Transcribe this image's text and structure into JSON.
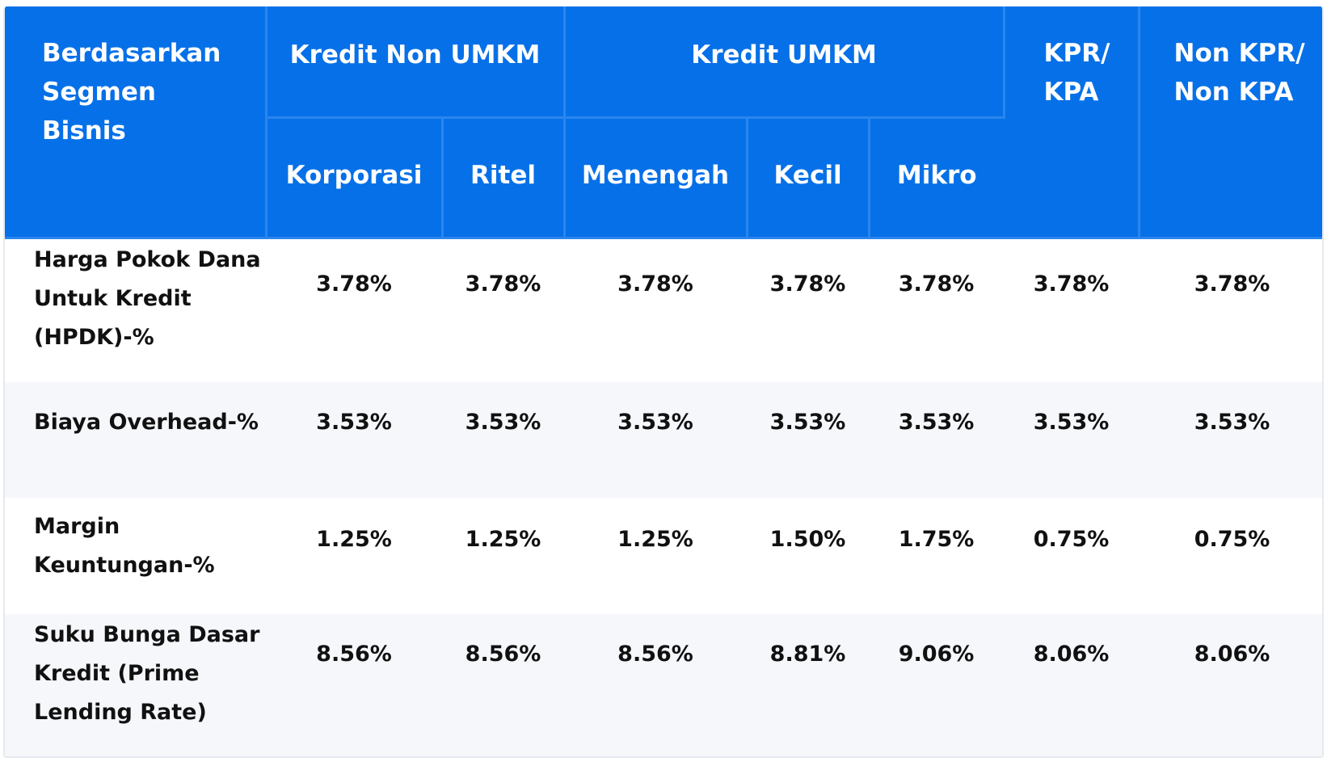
{
  "table": {
    "header": {
      "segmen": "Berdasarkan Segmen Bisnis",
      "group_non_umkm": "Kredit Non UMKM",
      "group_umkm": "Kredit UMKM",
      "kpr": "KPR/ KPA",
      "non_kpr": "Non KPR/ Non KPA",
      "korporasi": "Korporasi",
      "ritel": "Ritel",
      "menengah": "Menengah",
      "kecil": "Kecil",
      "mikro": "Mikro"
    },
    "rows": [
      {
        "label": "Harga Pokok Dana Untuk Kredit (HPDK)-%",
        "values": [
          "3.78%",
          "3.78%",
          "3.78%",
          "3.78%",
          "3.78%",
          "3.78%",
          "3.78%"
        ]
      },
      {
        "label": "Biaya Overhead-%",
        "values": [
          "3.53%",
          "3.53%",
          "3.53%",
          "3.53%",
          "3.53%",
          "3.53%",
          "3.53%"
        ]
      },
      {
        "label": "Margin Keuntungan-%",
        "values": [
          "1.25%",
          "1.25%",
          "1.25%",
          "1.50%",
          "1.75%",
          "0.75%",
          "0.75%"
        ]
      },
      {
        "label": "Suku Bunga Dasar Kredit (Prime Lending Rate)",
        "values": [
          "8.56%",
          "8.56%",
          "8.56%",
          "8.81%",
          "9.06%",
          "8.06%",
          "8.06%"
        ]
      }
    ]
  },
  "colors": {
    "header_bg": "#0670e8",
    "header_divider": "#2a86ee",
    "row_alt_bg": "#f5f7fb",
    "text": "#111111"
  }
}
